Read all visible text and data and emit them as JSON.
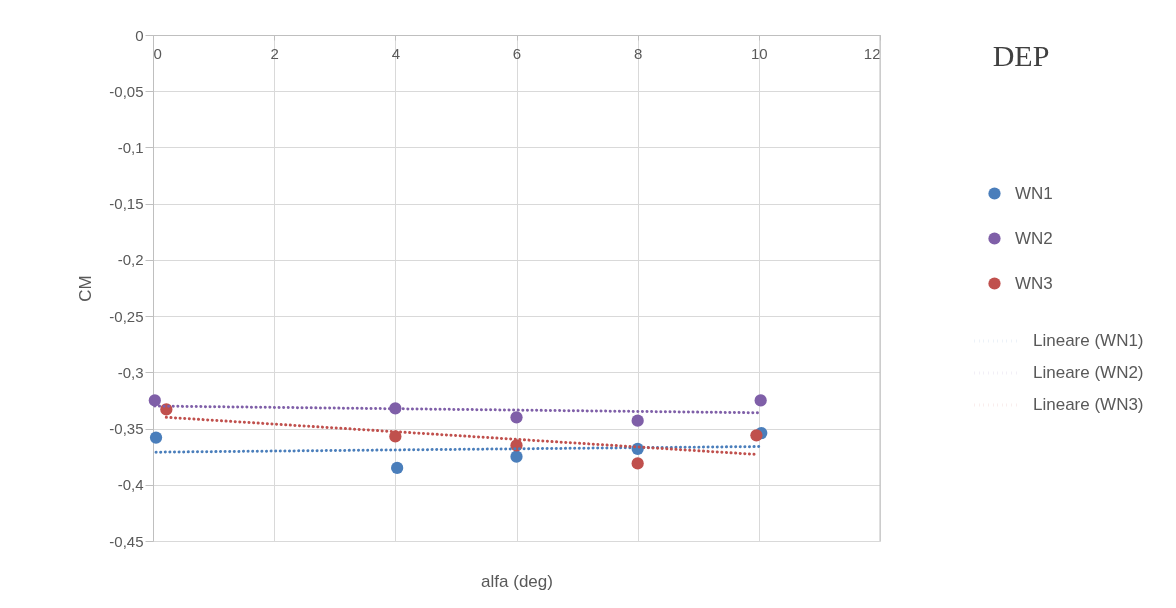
{
  "chart_data": {
    "type": "scatter",
    "title": "DEP",
    "xlabel": "alfa (deg)",
    "ylabel": "CM",
    "xlim": [
      0,
      12
    ],
    "xticks": [
      0,
      2,
      4,
      6,
      8,
      10,
      12
    ],
    "ylim": [
      -0.45,
      0
    ],
    "yticks": [
      {
        "value": 0,
        "label": "0"
      },
      {
        "value": -0.05,
        "label": "-0,05"
      },
      {
        "value": -0.1,
        "label": "-0,1"
      },
      {
        "value": -0.15,
        "label": "-0,15"
      },
      {
        "value": -0.2,
        "label": "-0,2"
      },
      {
        "value": -0.25,
        "label": "-0,25"
      },
      {
        "value": -0.3,
        "label": "-0,3"
      },
      {
        "value": -0.35,
        "label": "-0,35"
      },
      {
        "value": -0.4,
        "label": "-0,4"
      },
      {
        "value": -0.45,
        "label": "-0,45"
      }
    ],
    "grid": true,
    "legend": "right",
    "marker": "circle",
    "series": [
      {
        "name": "WN1",
        "color": "#4a7ebb",
        "x": [
          0.05,
          4.03,
          6.0,
          8.0,
          10.04
        ],
        "values": [
          -0.358,
          -0.385,
          -0.375,
          -0.368,
          -0.354
        ]
      },
      {
        "name": "WN2",
        "color": "#7f5fa8",
        "x": [
          0.03,
          4.0,
          6.0,
          8.0,
          10.03
        ],
        "values": [
          -0.325,
          -0.332,
          -0.34,
          -0.343,
          -0.325
        ]
      },
      {
        "name": "WN3",
        "color": "#c0504d",
        "x": [
          0.22,
          4.0,
          6.0,
          8.0,
          9.96
        ],
        "values": [
          -0.333,
          -0.357,
          -0.365,
          -0.381,
          -0.356
        ]
      },
      {
        "name": "Lineare (WN1)",
        "type": "line",
        "marker": "none",
        "line_style": "dotted",
        "color": "#4a7ebb",
        "x": [
          0.05,
          10.04
        ],
        "values": [
          -0.371,
          -0.366
        ]
      },
      {
        "name": "Lineare (WN2)",
        "type": "line",
        "marker": "none",
        "line_style": "dotted",
        "color": "#7f5fa8",
        "x": [
          0.03,
          10.03
        ],
        "values": [
          -0.33,
          -0.336
        ]
      },
      {
        "name": "Lineare (WN3)",
        "type": "line",
        "marker": "none",
        "line_style": "dotted",
        "color": "#c0504d",
        "x": [
          0.22,
          9.96
        ],
        "values": [
          -0.34,
          -0.373
        ]
      }
    ]
  }
}
